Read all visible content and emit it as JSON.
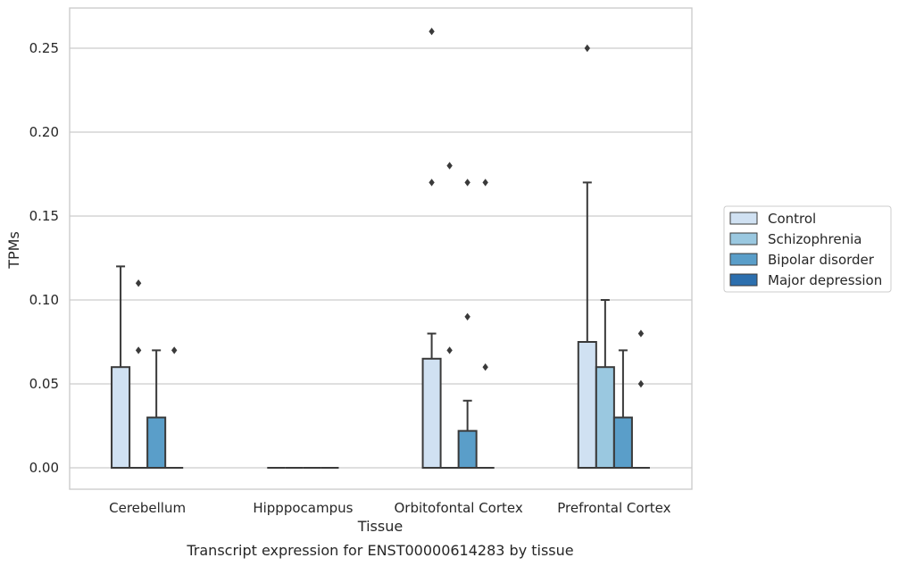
{
  "chart_data": {
    "type": "box",
    "title": "",
    "caption": "Transcript expression for ENST00000614283 by tissue",
    "xlabel": "Tissue",
    "ylabel": "TPMs",
    "ylim": [
      -0.013,
      0.274
    ],
    "y_ticks": [
      0.0,
      0.05,
      0.1,
      0.15,
      0.2,
      0.25
    ],
    "y_tick_labels": [
      "0.00",
      "0.05",
      "0.10",
      "0.15",
      "0.20",
      "0.25"
    ],
    "grid": "horizontal",
    "legend_position": "right",
    "categories": [
      "Cerebellum",
      "Hipppocampus",
      "Orbitofontal Cortex",
      "Prefrontal Cortex"
    ],
    "series": [
      {
        "name": "Control",
        "color": "#d0e1f2",
        "boxes": [
          {
            "q1": 0.0,
            "median": 0.0,
            "q3": 0.06,
            "whisker_low": 0.0,
            "whisker_high": 0.12,
            "outliers": []
          },
          {
            "q1": 0.0,
            "median": 0.0,
            "q3": 0.0,
            "whisker_low": 0.0,
            "whisker_high": 0.0,
            "outliers": []
          },
          {
            "q1": 0.0,
            "median": 0.0,
            "q3": 0.065,
            "whisker_low": 0.0,
            "whisker_high": 0.08,
            "outliers": [
              0.17,
              0.26
            ]
          },
          {
            "q1": 0.0,
            "median": 0.0,
            "q3": 0.075,
            "whisker_low": 0.0,
            "whisker_high": 0.17,
            "outliers": [
              0.25
            ]
          }
        ]
      },
      {
        "name": "Schizophrenia",
        "color": "#9ac8e0",
        "boxes": [
          {
            "q1": 0.0,
            "median": 0.0,
            "q3": 0.0,
            "whisker_low": 0.0,
            "whisker_high": 0.0,
            "outliers": [
              0.07,
              0.11
            ]
          },
          {
            "q1": 0.0,
            "median": 0.0,
            "q3": 0.0,
            "whisker_low": 0.0,
            "whisker_high": 0.0,
            "outliers": []
          },
          {
            "q1": 0.0,
            "median": 0.0,
            "q3": 0.0,
            "whisker_low": 0.0,
            "whisker_high": 0.0,
            "outliers": [
              0.07,
              0.18
            ]
          },
          {
            "q1": 0.0,
            "median": 0.0,
            "q3": 0.06,
            "whisker_low": 0.0,
            "whisker_high": 0.1,
            "outliers": []
          }
        ]
      },
      {
        "name": "Bipolar disorder",
        "color": "#5a9ec9",
        "boxes": [
          {
            "q1": 0.0,
            "median": 0.0,
            "q3": 0.03,
            "whisker_low": 0.0,
            "whisker_high": 0.07,
            "outliers": []
          },
          {
            "q1": 0.0,
            "median": 0.0,
            "q3": 0.0,
            "whisker_low": 0.0,
            "whisker_high": 0.0,
            "outliers": []
          },
          {
            "q1": 0.0,
            "median": 0.0,
            "q3": 0.022,
            "whisker_low": 0.0,
            "whisker_high": 0.04,
            "outliers": [
              0.09,
              0.17
            ]
          },
          {
            "q1": 0.0,
            "median": 0.0,
            "q3": 0.03,
            "whisker_low": 0.0,
            "whisker_high": 0.07,
            "outliers": []
          }
        ]
      },
      {
        "name": "Major depression",
        "color": "#2c6fae",
        "boxes": [
          {
            "q1": 0.0,
            "median": 0.0,
            "q3": 0.0,
            "whisker_low": 0.0,
            "whisker_high": 0.0,
            "outliers": [
              0.07
            ]
          },
          {
            "q1": 0.0,
            "median": 0.0,
            "q3": 0.0,
            "whisker_low": 0.0,
            "whisker_high": 0.0,
            "outliers": []
          },
          {
            "q1": 0.0,
            "median": 0.0,
            "q3": 0.0,
            "whisker_low": 0.0,
            "whisker_high": 0.0,
            "outliers": [
              0.06,
              0.17
            ]
          },
          {
            "q1": 0.0,
            "median": 0.0,
            "q3": 0.0,
            "whisker_low": 0.0,
            "whisker_high": 0.0,
            "outliers": [
              0.05,
              0.08
            ]
          }
        ]
      }
    ]
  }
}
